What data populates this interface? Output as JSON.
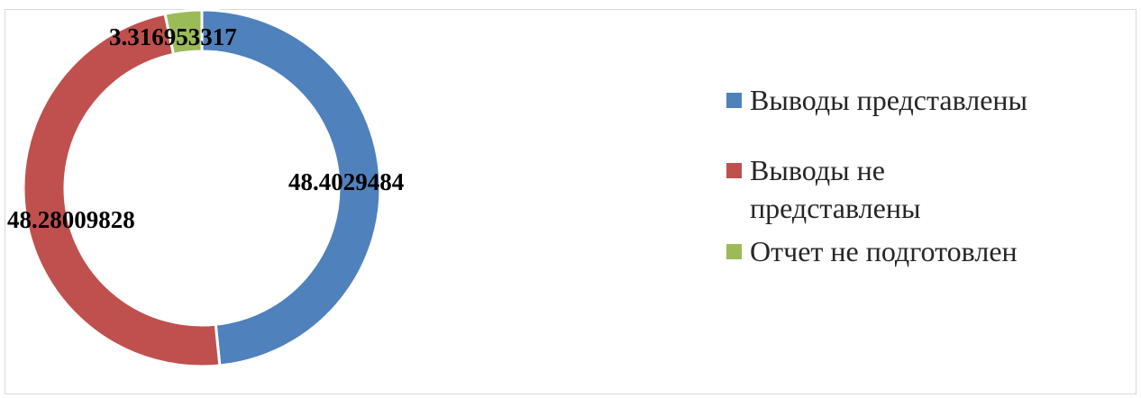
{
  "chart_data": {
    "type": "doughnut",
    "categories": [
      "Выводы представлены",
      "Выводы не представлены",
      "Отчет не подготовлен"
    ],
    "values": [
      48.4029484,
      48.28009828,
      3.316953317
    ],
    "data_labels": [
      "48.4029484",
      "48.28009828",
      "3.316953317"
    ],
    "colors": [
      "#4f81bd",
      "#c0504d",
      "#9bbb59"
    ],
    "legend_position": "right"
  }
}
